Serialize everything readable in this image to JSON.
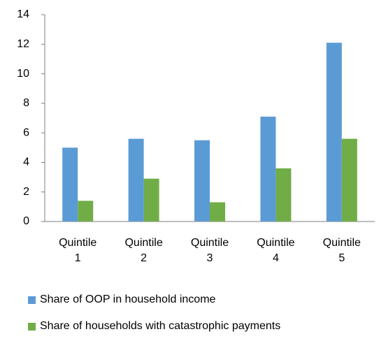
{
  "chart_data": {
    "type": "bar",
    "categories": [
      "Quintile 1",
      "Quintile 2",
      "Quintile 3",
      "Quintile 4",
      "Quintile 5"
    ],
    "series": [
      {
        "name": "Share of OOP in household income",
        "color": "#5b9bd5",
        "values": [
          5.0,
          5.6,
          5.5,
          7.1,
          12.1
        ]
      },
      {
        "name": "Share of households with catastrophic payments",
        "color": "#70ad47",
        "values": [
          1.4,
          2.9,
          1.3,
          3.6,
          5.6
        ]
      }
    ],
    "ylim": [
      0,
      14
    ],
    "yticks": [
      0,
      2,
      4,
      6,
      8,
      10,
      12,
      14
    ],
    "grid": false,
    "legend": "bottom"
  }
}
